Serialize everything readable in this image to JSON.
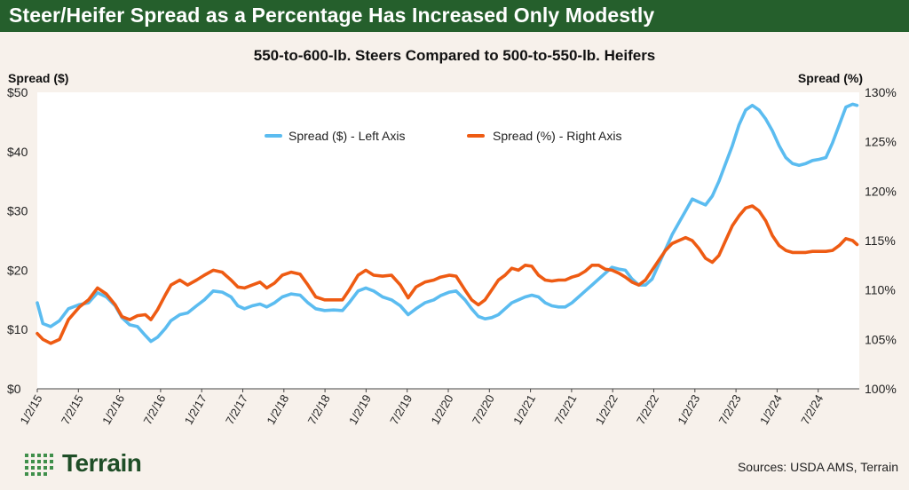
{
  "header": {
    "banner_title": "Steer/Heifer Spread as a Percentage Has Increased Only Modestly"
  },
  "colors": {
    "banner": "#255f2c",
    "background": "#f7f1eb",
    "dollar_series": "#5bbcf0",
    "percent_series": "#ee5b13",
    "logo": "#1f4e27"
  },
  "chart_data": {
    "type": "line",
    "title": "550-to-600-lb. Steers Compared to 500-to-550-lb. Heifers",
    "ylabel_left": "Spread ($)",
    "ylabel_right": "Spread (%)",
    "ylim_left": [
      0,
      50
    ],
    "ylim_right": [
      100,
      130
    ],
    "yticks_left": [
      "$0",
      "$10",
      "$20",
      "$30",
      "$40",
      "$50"
    ],
    "yticks_right": [
      "100%",
      "105%",
      "110%",
      "115%",
      "120%",
      "125%",
      "130%"
    ],
    "x_start": "1/2/15",
    "x_end": "1/2/25",
    "categories": [
      "1/2/15",
      "7/2/15",
      "1/2/16",
      "7/2/16",
      "1/2/17",
      "7/2/17",
      "1/2/18",
      "7/2/18",
      "1/2/19",
      "7/2/19",
      "1/2/20",
      "7/2/20",
      "1/2/21",
      "7/2/21",
      "1/2/22",
      "7/2/22",
      "1/2/23",
      "7/2/23",
      "1/2/24",
      "7/2/24"
    ],
    "legend_position": "top-center",
    "series": [
      {
        "name": "Spread ($) - Left Axis",
        "axis": "left",
        "points": [
          [
            0,
            14.5
          ],
          [
            0.05,
            11
          ],
          [
            0.12,
            10.5
          ],
          [
            0.2,
            11.5
          ],
          [
            0.28,
            13.5
          ],
          [
            0.38,
            14.2
          ],
          [
            0.46,
            14.5
          ],
          [
            0.54,
            16.2
          ],
          [
            0.62,
            15.5
          ],
          [
            0.7,
            14
          ],
          [
            0.76,
            12
          ],
          [
            0.83,
            10.8
          ],
          [
            0.9,
            10.5
          ],
          [
            0.97,
            9
          ],
          [
            1.02,
            8
          ],
          [
            1.08,
            8.7
          ],
          [
            1.15,
            10.2
          ],
          [
            1.2,
            11.5
          ],
          [
            1.28,
            12.5
          ],
          [
            1.35,
            12.8
          ],
          [
            1.43,
            14
          ],
          [
            1.5,
            15
          ],
          [
            1.58,
            16.5
          ],
          [
            1.66,
            16.3
          ],
          [
            1.74,
            15.5
          ],
          [
            1.8,
            14
          ],
          [
            1.86,
            13.5
          ],
          [
            1.93,
            14
          ],
          [
            2.0,
            14.3
          ],
          [
            2.06,
            13.8
          ],
          [
            2.13,
            14.5
          ],
          [
            2.2,
            15.5
          ],
          [
            2.28,
            16
          ],
          [
            2.36,
            15.8
          ],
          [
            2.43,
            14.5
          ],
          [
            2.5,
            13.5
          ],
          [
            2.58,
            13.2
          ],
          [
            2.66,
            13.3
          ],
          [
            2.74,
            13.2
          ],
          [
            2.8,
            14.5
          ],
          [
            2.88,
            16.5
          ],
          [
            2.95,
            17
          ],
          [
            3.02,
            16.5
          ],
          [
            3.1,
            15.5
          ],
          [
            3.18,
            15
          ],
          [
            3.26,
            14
          ],
          [
            3.33,
            12.5
          ],
          [
            3.4,
            13.5
          ],
          [
            3.48,
            14.5
          ],
          [
            3.56,
            15
          ],
          [
            3.62,
            15.7
          ],
          [
            3.7,
            16.3
          ],
          [
            3.76,
            16.5
          ],
          [
            3.84,
            15
          ],
          [
            3.9,
            13.5
          ],
          [
            3.96,
            12.2
          ],
          [
            4.02,
            11.8
          ],
          [
            4.08,
            12
          ],
          [
            4.14,
            12.5
          ],
          [
            4.2,
            13.5
          ],
          [
            4.26,
            14.5
          ],
          [
            4.32,
            15
          ],
          [
            4.38,
            15.5
          ],
          [
            4.44,
            15.8
          ],
          [
            4.5,
            15.5
          ],
          [
            4.56,
            14.5
          ],
          [
            4.62,
            14
          ],
          [
            4.68,
            13.8
          ],
          [
            4.74,
            13.8
          ],
          [
            4.8,
            14.5
          ],
          [
            4.86,
            15.5
          ],
          [
            4.92,
            16.5
          ],
          [
            4.98,
            17.5
          ],
          [
            5.04,
            18.5
          ],
          [
            5.1,
            19.5
          ],
          [
            5.16,
            20.5
          ],
          [
            5.22,
            20.2
          ],
          [
            5.28,
            20
          ],
          [
            5.34,
            18.5
          ],
          [
            5.4,
            17.5
          ],
          [
            5.46,
            17.5
          ],
          [
            5.52,
            18.5
          ],
          [
            5.58,
            21
          ],
          [
            5.64,
            23.5
          ],
          [
            5.7,
            26
          ],
          [
            5.76,
            28
          ],
          [
            5.82,
            30
          ],
          [
            5.88,
            32
          ],
          [
            5.94,
            31.5
          ],
          [
            6.0,
            31
          ],
          [
            6.06,
            32.5
          ],
          [
            6.12,
            35
          ],
          [
            6.18,
            38
          ],
          [
            6.24,
            41
          ],
          [
            6.3,
            44.5
          ],
          [
            6.36,
            47
          ],
          [
            6.42,
            47.8
          ],
          [
            6.48,
            47
          ],
          [
            6.54,
            45.5
          ],
          [
            6.6,
            43.5
          ],
          [
            6.66,
            41
          ],
          [
            6.72,
            39
          ],
          [
            6.78,
            38
          ],
          [
            6.84,
            37.7
          ],
          [
            6.9,
            38
          ],
          [
            6.96,
            38.5
          ],
          [
            7.02,
            38.7
          ],
          [
            7.08,
            39
          ],
          [
            7.14,
            41.5
          ],
          [
            7.2,
            44.5
          ],
          [
            7.26,
            47.5
          ],
          [
            7.32,
            48
          ],
          [
            7.36,
            47.8
          ]
        ]
      },
      {
        "name": "Spread (%) - Right Axis",
        "axis": "right",
        "points": [
          [
            0,
            105.6
          ],
          [
            0.05,
            105
          ],
          [
            0.12,
            104.6
          ],
          [
            0.2,
            105
          ],
          [
            0.28,
            107
          ],
          [
            0.38,
            108.3
          ],
          [
            0.46,
            109
          ],
          [
            0.54,
            110.2
          ],
          [
            0.62,
            109.6
          ],
          [
            0.7,
            108.5
          ],
          [
            0.76,
            107.3
          ],
          [
            0.83,
            107
          ],
          [
            0.9,
            107.4
          ],
          [
            0.97,
            107.5
          ],
          [
            1.02,
            107
          ],
          [
            1.08,
            108
          ],
          [
            1.15,
            109.5
          ],
          [
            1.2,
            110.5
          ],
          [
            1.28,
            111
          ],
          [
            1.35,
            110.5
          ],
          [
            1.43,
            111
          ],
          [
            1.5,
            111.5
          ],
          [
            1.58,
            112
          ],
          [
            1.66,
            111.8
          ],
          [
            1.74,
            111
          ],
          [
            1.8,
            110.3
          ],
          [
            1.86,
            110.2
          ],
          [
            1.93,
            110.5
          ],
          [
            2.0,
            110.8
          ],
          [
            2.06,
            110.2
          ],
          [
            2.13,
            110.7
          ],
          [
            2.2,
            111.5
          ],
          [
            2.28,
            111.8
          ],
          [
            2.36,
            111.6
          ],
          [
            2.43,
            110.5
          ],
          [
            2.5,
            109.3
          ],
          [
            2.58,
            109
          ],
          [
            2.66,
            109
          ],
          [
            2.74,
            109
          ],
          [
            2.8,
            110
          ],
          [
            2.88,
            111.5
          ],
          [
            2.95,
            112
          ],
          [
            3.02,
            111.5
          ],
          [
            3.1,
            111.4
          ],
          [
            3.18,
            111.5
          ],
          [
            3.26,
            110.5
          ],
          [
            3.33,
            109.2
          ],
          [
            3.4,
            110.3
          ],
          [
            3.48,
            110.8
          ],
          [
            3.56,
            111
          ],
          [
            3.62,
            111.3
          ],
          [
            3.7,
            111.5
          ],
          [
            3.76,
            111.4
          ],
          [
            3.84,
            110
          ],
          [
            3.9,
            109
          ],
          [
            3.96,
            108.5
          ],
          [
            4.02,
            109
          ],
          [
            4.08,
            110
          ],
          [
            4.14,
            111
          ],
          [
            4.2,
            111.5
          ],
          [
            4.26,
            112.2
          ],
          [
            4.32,
            112
          ],
          [
            4.38,
            112.5
          ],
          [
            4.44,
            112.4
          ],
          [
            4.5,
            111.5
          ],
          [
            4.56,
            111
          ],
          [
            4.62,
            110.9
          ],
          [
            4.68,
            111
          ],
          [
            4.74,
            111
          ],
          [
            4.8,
            111.3
          ],
          [
            4.86,
            111.5
          ],
          [
            4.92,
            111.9
          ],
          [
            4.98,
            112.5
          ],
          [
            5.04,
            112.5
          ],
          [
            5.1,
            112.1
          ],
          [
            5.16,
            112
          ],
          [
            5.22,
            111.7
          ],
          [
            5.28,
            111.3
          ],
          [
            5.34,
            110.8
          ],
          [
            5.4,
            110.5
          ],
          [
            5.46,
            111
          ],
          [
            5.52,
            112
          ],
          [
            5.58,
            113
          ],
          [
            5.64,
            114
          ],
          [
            5.7,
            114.7
          ],
          [
            5.76,
            115
          ],
          [
            5.82,
            115.3
          ],
          [
            5.88,
            115
          ],
          [
            5.94,
            114.2
          ],
          [
            6.0,
            113.2
          ],
          [
            6.06,
            112.8
          ],
          [
            6.12,
            113.5
          ],
          [
            6.18,
            115
          ],
          [
            6.24,
            116.5
          ],
          [
            6.3,
            117.5
          ],
          [
            6.36,
            118.3
          ],
          [
            6.42,
            118.5
          ],
          [
            6.48,
            118
          ],
          [
            6.54,
            117
          ],
          [
            6.6,
            115.5
          ],
          [
            6.66,
            114.5
          ],
          [
            6.72,
            114
          ],
          [
            6.78,
            113.8
          ],
          [
            6.84,
            113.8
          ],
          [
            6.9,
            113.8
          ],
          [
            6.96,
            113.9
          ],
          [
            7.02,
            113.9
          ],
          [
            7.08,
            113.9
          ],
          [
            7.14,
            114
          ],
          [
            7.2,
            114.5
          ],
          [
            7.26,
            115.2
          ],
          [
            7.32,
            115
          ],
          [
            7.36,
            114.6
          ]
        ]
      }
    ]
  },
  "footer": {
    "logo_text": "Terrain",
    "sources": "Sources: USDA AMS, Terrain"
  }
}
